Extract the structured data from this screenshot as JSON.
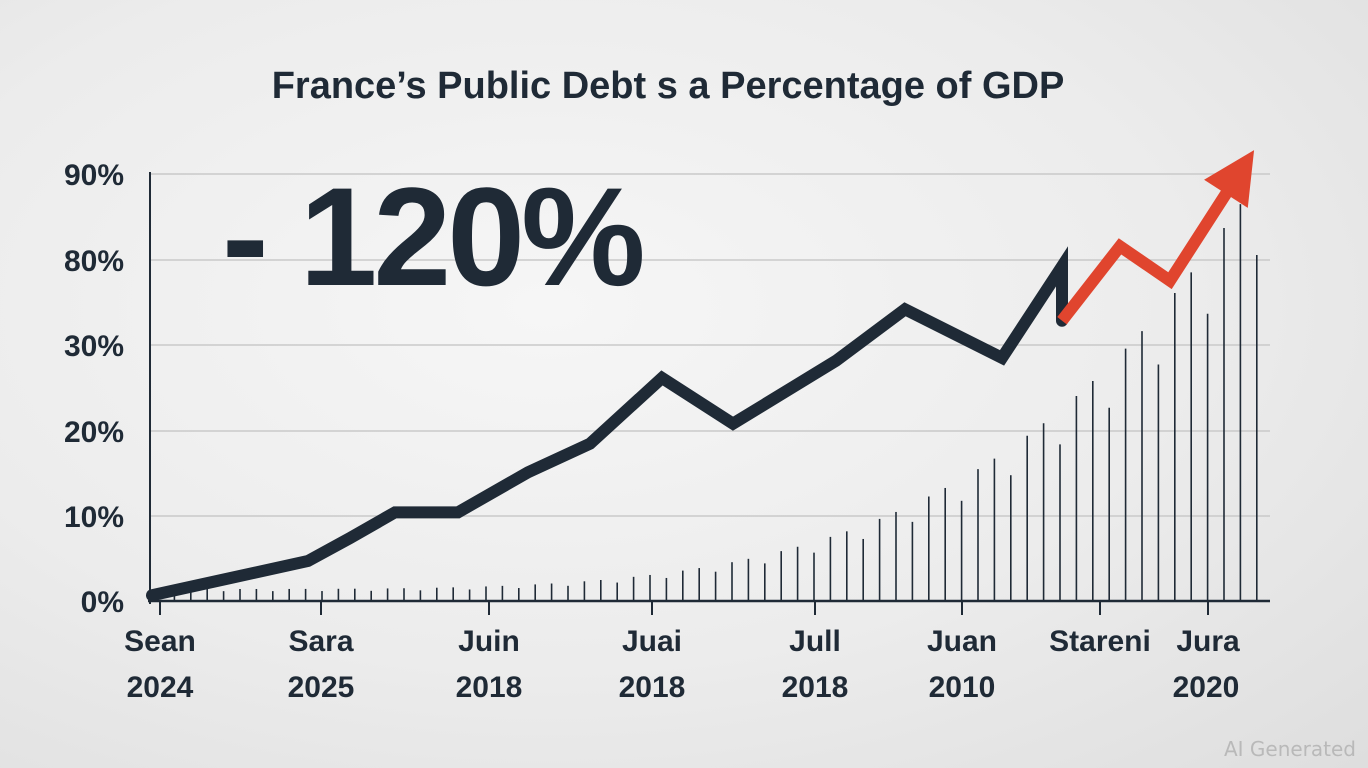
{
  "chart_data": {
    "type": "line",
    "title": "France’s Public Debt s a Percentage of GDP",
    "annotation": "- 120%",
    "y_ticks": [
      "0%",
      "10%",
      "20%",
      "30%",
      "80%",
      "90%"
    ],
    "x_ticks": [
      {
        "line1": "Sean",
        "line2": "2024"
      },
      {
        "line1": "Sara",
        "line2": "2025"
      },
      {
        "line1": "Juin",
        "line2": "2018"
      },
      {
        "line1": "Juai",
        "line2": "2018"
      },
      {
        "line1": "Jull",
        "line2": "2018"
      },
      {
        "line1": "Juan",
        "line2": "2010"
      },
      {
        "line1": "Stareni",
        "line2": ""
      },
      {
        "line1": "Jura",
        "line2": "2020"
      }
    ],
    "series": [
      {
        "color": "#1f2a36",
        "values": [
          0.2,
          0.8,
          1.4,
          2.2,
          3.1,
          3.1,
          4.5,
          5.5,
          7.8,
          6.2,
          8.4,
          10.2,
          8.5,
          11.7,
          9.8
        ]
      },
      {
        "color": "#e0452e",
        "values": [
          9.8,
          12.4,
          11.2,
          15.0
        ]
      }
    ],
    "grid": true,
    "legend": "none"
  },
  "watermark": "AI Generated"
}
